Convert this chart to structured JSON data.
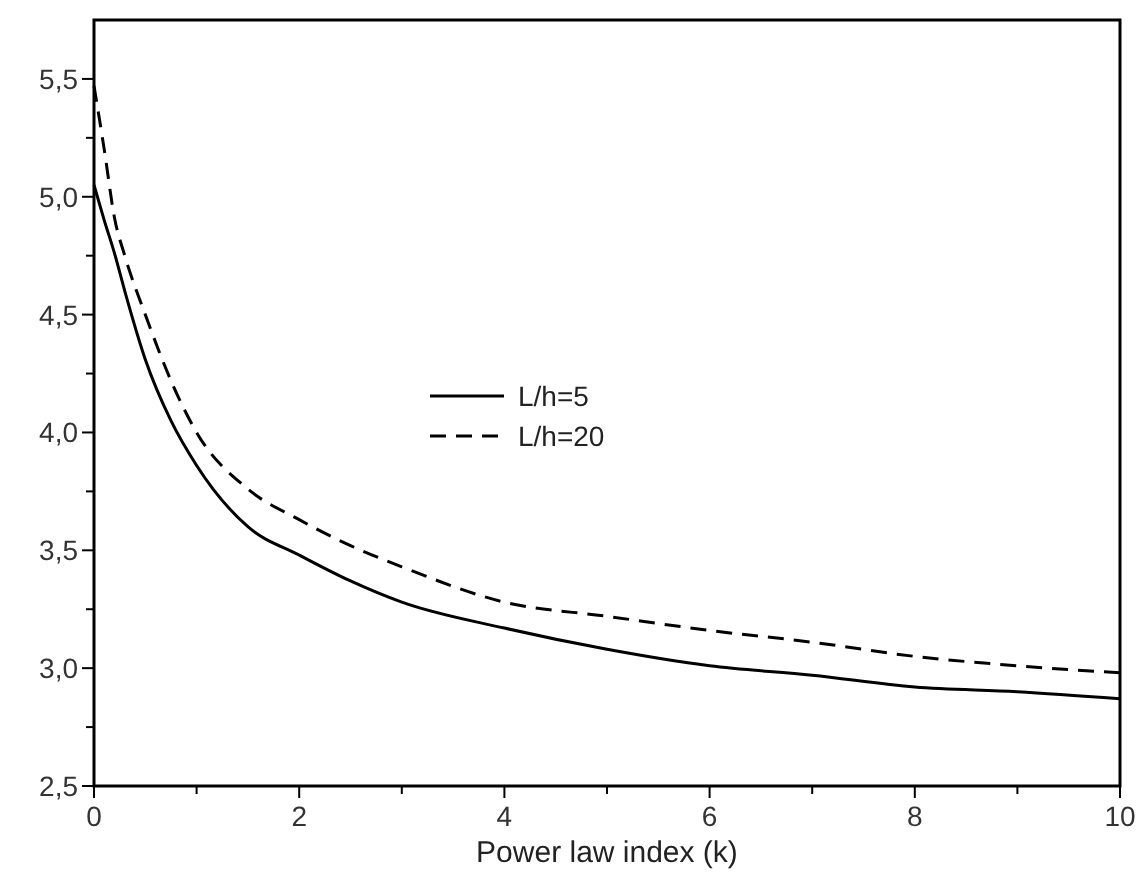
{
  "chart_data": {
    "type": "line",
    "xlabel": "Power law index (k)",
    "xlim": [
      0,
      10
    ],
    "ylim": [
      2.5,
      5.75
    ],
    "xticks": [
      0,
      {
        "value": 1,
        "label": null
      },
      2,
      {
        "value": 3,
        "label": null
      },
      4,
      {
        "value": 5,
        "label": null
      },
      6,
      {
        "value": 7,
        "label": null
      },
      8,
      {
        "value": 9,
        "label": null
      },
      10
    ],
    "yticks": [
      {
        "value": 2.5,
        "label": "2,5"
      },
      {
        "value": 2.75,
        "label": null
      },
      {
        "value": 3,
        "label": "3,0"
      },
      {
        "value": 3.25,
        "label": null
      },
      {
        "value": 3.5,
        "label": "3,5"
      },
      {
        "value": 3.75,
        "label": null
      },
      {
        "value": 4,
        "label": "4,0"
      },
      {
        "value": 4.25,
        "label": null
      },
      {
        "value": 4.5,
        "label": "4,5"
      },
      {
        "value": 4.75,
        "label": null
      },
      {
        "value": 5,
        "label": "5,0"
      },
      {
        "value": 5.25,
        "label": null
      },
      {
        "value": 5.5,
        "label": "5,5"
      }
    ],
    "x": [
      0,
      0.1,
      0.2,
      0.3,
      0.5,
      0.75,
      1,
      1.5,
      2,
      2.5,
      3,
      4,
      5,
      6,
      7,
      8,
      9,
      10
    ],
    "legend": "center",
    "grid": false,
    "series": [
      {
        "name": "L/h=5",
        "color": "#000000",
        "line_style": "solid",
        "values": [
          5.05,
          4.9,
          4.76,
          4.6,
          4.31,
          4.05,
          3.86,
          3.6,
          3.48,
          3.37,
          3.28,
          3.17,
          3.08,
          3.01,
          2.97,
          2.92,
          2.9,
          2.87
        ]
      },
      {
        "name": "L/h=20",
        "color": "#000000",
        "line_style": "dashed",
        "values": [
          5.47,
          5.2,
          4.91,
          4.75,
          4.5,
          4.22,
          4.0,
          3.76,
          3.63,
          3.52,
          3.43,
          3.28,
          3.22,
          3.16,
          3.11,
          3.05,
          3.01,
          2.98
        ]
      }
    ]
  }
}
